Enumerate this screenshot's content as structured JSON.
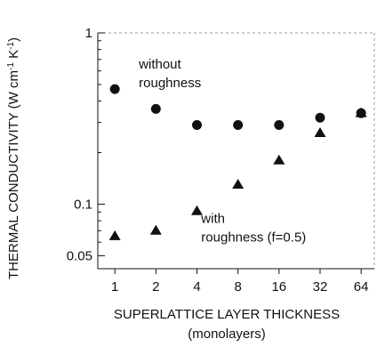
{
  "chart_data": {
    "type": "scatter",
    "xlabel": "SUPERLATTICE LAYER THICKNESS",
    "xlabel_unit": "(monolayers)",
    "ylabel_parts": [
      "THERMAL CONDUCTIVITY   (W cm",
      "-1",
      " K",
      "-1",
      ")"
    ],
    "x_scale": "log2",
    "y_scale": "log10",
    "xlim": [
      0.75,
      80
    ],
    "ylim": [
      0.042,
      1
    ],
    "x_ticks": [
      1,
      2,
      4,
      8,
      16,
      32,
      64
    ],
    "x_tick_labels": [
      "1",
      "2",
      "4",
      "8",
      "16",
      "32",
      "64"
    ],
    "y_ticks": [
      0.05,
      0.1,
      1
    ],
    "y_tick_labels": [
      "0.05",
      "0.1",
      "1"
    ],
    "grid": false,
    "legend": "none",
    "series": [
      {
        "marker": "circle",
        "x": [
          1,
          2,
          4,
          8,
          16,
          32,
          64
        ],
        "y": [
          0.47,
          0.36,
          0.29,
          0.29,
          0.29,
          0.32,
          0.34
        ]
      },
      {
        "marker": "triangle",
        "x": [
          1,
          2,
          4,
          8,
          16,
          32,
          64
        ],
        "y": [
          0.065,
          0.07,
          0.091,
          0.13,
          0.18,
          0.26,
          0.34
        ]
      }
    ],
    "annotations": [
      {
        "lines": [
          "without",
          "roughness"
        ],
        "anchor_x": 1.5,
        "anchor_y": 0.62
      },
      {
        "lines": [
          "with",
          "roughness (f=0.5)"
        ],
        "anchor_x": 4.3,
        "anchor_y": 0.078
      }
    ]
  }
}
